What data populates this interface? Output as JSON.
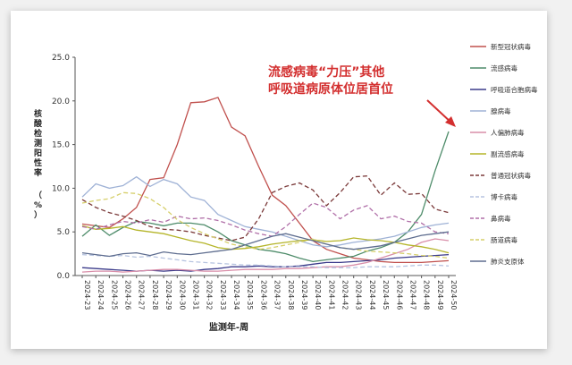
{
  "chart_data": {
    "type": "line",
    "xlabel": "监测年-周",
    "ylabel": "核酸检测阳性率（%）",
    "ylim": [
      0,
      25
    ],
    "yticks": [
      "0.0",
      "5.0",
      "10.0",
      "15.0",
      "20.0",
      "25.0"
    ],
    "grid": false,
    "legend_position": "right",
    "x": [
      "2024-23",
      "2024-24",
      "2024-25",
      "2024-26",
      "2024-27",
      "2024-28",
      "2024-29",
      "2024-30",
      "2024-31",
      "2024-32",
      "2024-33",
      "2024-34",
      "2024-35",
      "2024-36",
      "2024-37",
      "2024-38",
      "2024-39",
      "2024-40",
      "2024-41",
      "2024-42",
      "2024-43",
      "2024-44",
      "2024-45",
      "2024-46",
      "2024-47",
      "2024-48",
      "2024-49",
      "2024-50"
    ],
    "annotation": {
      "line1": "流感病毒“力压”其他",
      "line2": "呼吸道病原体位居首位"
    },
    "series": [
      {
        "name": "新型冠状病毒",
        "color": "#c0504d",
        "dash": "solid",
        "values": [
          5.9,
          5.7,
          5.5,
          6.5,
          7.8,
          11.0,
          11.2,
          15.0,
          19.8,
          19.9,
          20.4,
          17.0,
          16.0,
          12.5,
          9.2,
          8.0,
          6.0,
          4.0,
          3.0,
          2.5,
          2.0,
          1.8,
          1.6,
          1.5,
          1.5,
          1.5,
          1.6,
          1.7
        ]
      },
      {
        "name": "流感病毒",
        "color": "#4e8c6a",
        "dash": "solid",
        "values": [
          4.5,
          5.8,
          4.6,
          5.5,
          6.2,
          6.0,
          5.7,
          6.0,
          6.0,
          5.8,
          5.0,
          4.0,
          3.5,
          3.0,
          2.8,
          2.5,
          2.0,
          1.6,
          1.8,
          2.0,
          2.2,
          2.8,
          3.2,
          3.8,
          5.0,
          7.0,
          12.0,
          16.5
        ]
      },
      {
        "name": "呼吸道合胞病毒",
        "color": "#3b3b8a",
        "dash": "solid",
        "values": [
          0.9,
          0.8,
          0.7,
          0.6,
          0.5,
          0.6,
          0.5,
          0.6,
          0.5,
          0.7,
          0.8,
          1.0,
          1.0,
          1.1,
          1.0,
          1.0,
          1.1,
          1.3,
          1.5,
          1.5,
          1.6,
          1.7,
          1.8,
          2.0,
          2.1,
          2.2,
          2.3,
          2.4
        ]
      },
      {
        "name": "腺病毒",
        "color": "#9fb2d6",
        "dash": "solid",
        "values": [
          9.0,
          10.5,
          10.0,
          10.3,
          11.3,
          10.2,
          11.0,
          10.5,
          9.0,
          8.6,
          7.0,
          6.3,
          5.6,
          5.3,
          5.0,
          4.5,
          4.0,
          3.5,
          3.3,
          3.5,
          3.8,
          4.0,
          4.2,
          4.5,
          5.0,
          5.5,
          5.8,
          6.0
        ]
      },
      {
        "name": "人偏肺病毒",
        "color": "#d98ea9",
        "dash": "solid",
        "values": [
          0.4,
          0.5,
          0.5,
          0.4,
          0.5,
          0.6,
          0.7,
          0.7,
          0.6,
          0.5,
          0.5,
          0.6,
          0.7,
          0.7,
          0.7,
          0.8,
          0.8,
          0.9,
          1.0,
          1.0,
          1.2,
          1.5,
          2.0,
          2.5,
          3.0,
          3.8,
          4.2,
          4.0
        ]
      },
      {
        "name": "副流感病毒",
        "color": "#b5b52a",
        "dash": "solid",
        "values": [
          5.7,
          5.3,
          5.4,
          5.6,
          5.2,
          5.0,
          4.8,
          4.4,
          4.0,
          3.7,
          3.2,
          3.0,
          3.1,
          3.3,
          3.6,
          3.8,
          4.0,
          4.1,
          3.9,
          4.0,
          4.3,
          4.1,
          4.0,
          3.8,
          3.5,
          3.3,
          3.0,
          2.6
        ]
      },
      {
        "name": "普通冠状病毒",
        "color": "#7b3a3a",
        "dash": "dashed",
        "values": [
          8.7,
          7.8,
          7.2,
          6.8,
          6.3,
          5.6,
          5.3,
          5.2,
          5.0,
          4.6,
          4.3,
          4.0,
          4.4,
          6.5,
          9.5,
          10.2,
          10.6,
          9.8,
          8.0,
          9.5,
          11.3,
          11.4,
          9.2,
          10.6,
          9.3,
          9.4,
          7.6,
          7.2
        ]
      },
      {
        "name": "博卡病毒",
        "color": "#b7c4e0",
        "dash": "dashed",
        "values": [
          2.4,
          2.3,
          2.2,
          2.3,
          2.1,
          2.2,
          2.0,
          1.8,
          1.6,
          1.5,
          1.4,
          1.3,
          1.2,
          1.2,
          1.1,
          1.0,
          1.0,
          1.0,
          0.9,
          0.9,
          0.9,
          1.0,
          1.0,
          1.0,
          1.1,
          1.2,
          1.2,
          1.1
        ]
      },
      {
        "name": "鼻病毒",
        "color": "#b06fa8",
        "dash": "dashed",
        "values": [
          5.6,
          5.3,
          5.8,
          6.2,
          6.0,
          6.4,
          6.1,
          6.8,
          6.5,
          6.6,
          6.3,
          5.8,
          5.2,
          4.8,
          4.5,
          5.6,
          7.0,
          8.3,
          7.8,
          6.5,
          7.5,
          8.0,
          6.5,
          6.8,
          6.2,
          6.0,
          5.0,
          4.8
        ]
      },
      {
        "name": "肠道病毒",
        "color": "#d6cf6a",
        "dash": "dashed",
        "values": [
          8.3,
          8.6,
          8.8,
          9.5,
          9.4,
          8.8,
          7.8,
          6.4,
          5.5,
          4.8,
          4.2,
          3.6,
          3.3,
          3.0,
          3.2,
          3.5,
          3.8,
          4.2,
          3.6,
          3.2,
          3.0,
          2.8,
          2.7,
          2.6,
          2.5,
          2.3,
          2.2,
          2.0
        ]
      },
      {
        "name": "肺炎支原体",
        "color": "#5e6d8f",
        "dash": "solid",
        "values": [
          2.6,
          2.4,
          2.2,
          2.5,
          2.6,
          2.3,
          2.7,
          2.5,
          2.4,
          2.6,
          2.8,
          3.0,
          3.5,
          4.0,
          4.5,
          4.8,
          4.4,
          4.0,
          3.6,
          3.2,
          3.0,
          3.2,
          3.4,
          3.8,
          4.2,
          4.6,
          4.8,
          5.0
        ]
      }
    ]
  }
}
